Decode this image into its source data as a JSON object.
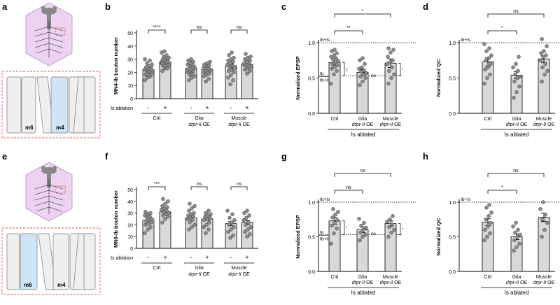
{
  "panel_labels": {
    "a": "a",
    "b": "b",
    "c": "c",
    "d": "d",
    "e": "e",
    "f": "f",
    "g": "g",
    "h": "h"
  },
  "schematic": {
    "top": {
      "left_muscle": "m6",
      "right_muscle": "m4"
    },
    "bottom": {
      "left_muscle": "m6",
      "right_muscle": "m4"
    }
  },
  "colors": {
    "bar": "#d9d9d9",
    "dot": "#8c8c8c",
    "highlight_muscle": "#cfe4f6",
    "embryo": "#e8c9ef",
    "dash_box": "#e05555"
  },
  "groups": {
    "ctrl": "Ctrl",
    "glia": "Glia",
    "muscle": "Muscle",
    "drpr": "drpr-II",
    "oe": "OE"
  },
  "ablation": {
    "label": "Is ablation",
    "minus": "-",
    "plus": "+"
  },
  "is_ablated": "Is ablated",
  "ref_labels": {
    "ibis": "Ib+Is",
    "ib": "Ib",
    "ibis2": "Ib+Is"
  },
  "chart_data": [
    {
      "id": "b",
      "type": "bar",
      "ylabel": "MN4-Ib bouton number",
      "ylim": [
        0,
        50
      ],
      "yticks": [
        0,
        10,
        20,
        30,
        40,
        50
      ],
      "categories": [
        "-",
        "+",
        "-",
        "+",
        "-",
        "+"
      ],
      "values": [
        22,
        28,
        23,
        22,
        25,
        26
      ],
      "errors": [
        1.0,
        1.0,
        1.2,
        1.2,
        1.4,
        1.2
      ],
      "points": [
        [
          14,
          16,
          17,
          18,
          18,
          19,
          19,
          20,
          20,
          21,
          21,
          22,
          22,
          22,
          23,
          23,
          24,
          24,
          25,
          26,
          27,
          29,
          30
        ],
        [
          21,
          23,
          24,
          25,
          25,
          26,
          26,
          27,
          27,
          28,
          28,
          29,
          29,
          30,
          30,
          31,
          31,
          32,
          33,
          35,
          36,
          23,
          27
        ],
        [
          14,
          16,
          17,
          18,
          19,
          20,
          21,
          21,
          22,
          22,
          23,
          23,
          24,
          24,
          25,
          26,
          26,
          27,
          28,
          29,
          30
        ],
        [
          13,
          15,
          17,
          18,
          19,
          20,
          20,
          21,
          21,
          22,
          22,
          23,
          23,
          24,
          25,
          25,
          26,
          27,
          28
        ],
        [
          11,
          14,
          16,
          18,
          20,
          21,
          22,
          23,
          24,
          25,
          26,
          27,
          28,
          29,
          30,
          31,
          33,
          35
        ],
        [
          19,
          21,
          22,
          23,
          24,
          25,
          25,
          26,
          26,
          27,
          27,
          28,
          29,
          30,
          31,
          32,
          34
        ]
      ],
      "comparisons": [
        {
          "from": 0,
          "to": 1,
          "label": "****"
        },
        {
          "from": 2,
          "to": 3,
          "label": "ns"
        },
        {
          "from": 4,
          "to": 5,
          "label": "ns"
        }
      ]
    },
    {
      "id": "c",
      "type": "bar",
      "ylabel": "Normalized EPSP",
      "ylim": [
        0,
        1.0
      ],
      "yticks": [
        "0.0",
        "0.5",
        "1.0"
      ],
      "categories": [
        "Ctrl",
        "Glia",
        "Muscle"
      ],
      "values": [
        0.72,
        0.58,
        0.71
      ],
      "errors": [
        0.04,
        0.04,
        0.06
      ],
      "ref_top": 1.0,
      "ref_low": 0.53,
      "points": [
        [
          0.42,
          0.55,
          0.6,
          0.63,
          0.66,
          0.68,
          0.7,
          0.72,
          0.74,
          0.76,
          0.78,
          0.8,
          0.82,
          0.85,
          0.88,
          0.9
        ],
        [
          0.4,
          0.45,
          0.5,
          0.52,
          0.55,
          0.57,
          0.59,
          0.61,
          0.63,
          0.65,
          0.7,
          0.75,
          0.78
        ],
        [
          0.42,
          0.5,
          0.55,
          0.6,
          0.65,
          0.7,
          0.72,
          0.75,
          0.8,
          0.86,
          0.9,
          0.92
        ]
      ],
      "comparisons": [
        {
          "from": 0,
          "to": 1,
          "label": "**"
        },
        {
          "from": 0,
          "to": 2,
          "label": "*"
        }
      ],
      "side_marks": [
        {
          "bar": 0,
          "label": "‡"
        },
        {
          "bar": 1,
          "label": "ns"
        },
        {
          "bar": 2,
          "label": "*"
        }
      ]
    },
    {
      "id": "d",
      "type": "bar",
      "ylabel": "Normalized QC",
      "ylim": [
        0,
        1.0
      ],
      "yticks": [
        "0.0",
        "0.5",
        "1.0"
      ],
      "categories": [
        "Ctrl",
        "Glia",
        "Muscle"
      ],
      "values": [
        0.73,
        0.54,
        0.77
      ],
      "errors": [
        0.06,
        0.05,
        0.05
      ],
      "ref_top": 1.0,
      "points": [
        [
          0.42,
          0.5,
          0.55,
          0.62,
          0.65,
          0.7,
          0.75,
          0.78,
          0.82,
          0.88,
          0.92,
          0.98
        ],
        [
          0.22,
          0.3,
          0.38,
          0.45,
          0.5,
          0.52,
          0.55,
          0.6,
          0.65,
          0.7,
          0.8
        ],
        [
          0.45,
          0.55,
          0.6,
          0.65,
          0.7,
          0.75,
          0.8,
          0.82,
          0.85,
          0.88,
          0.95,
          1.05
        ]
      ],
      "comparisons": [
        {
          "from": 0,
          "to": 1,
          "label": "*"
        },
        {
          "from": 0,
          "to": 2,
          "label": "ns"
        }
      ]
    },
    {
      "id": "f",
      "type": "bar",
      "ylabel": "MN6-Ib bouton number",
      "ylim": [
        0,
        50
      ],
      "yticks": [
        0,
        10,
        20,
        30,
        40,
        50
      ],
      "categories": [
        "-",
        "+",
        "-",
        "+",
        "-",
        "+"
      ],
      "values": [
        24,
        31,
        26,
        25,
        21,
        22
      ],
      "errors": [
        1.3,
        1.1,
        1.3,
        1.1,
        1.8,
        1.6
      ],
      "points": [
        [
          13,
          16,
          18,
          20,
          21,
          22,
          23,
          24,
          25,
          26,
          27,
          28,
          29,
          30,
          31
        ],
        [
          22,
          25,
          27,
          28,
          29,
          30,
          31,
          32,
          33,
          34,
          35,
          36,
          38,
          40,
          42
        ],
        [
          16,
          18,
          20,
          22,
          24,
          25,
          26,
          27,
          28,
          29,
          30,
          32,
          34,
          36,
          38
        ],
        [
          13,
          16,
          18,
          20,
          22,
          24,
          25,
          26,
          27,
          28,
          29,
          30,
          32
        ],
        [
          9,
          11,
          14,
          16,
          18,
          20,
          22,
          24,
          26,
          29,
          32
        ],
        [
          10,
          12,
          14,
          16,
          18,
          20,
          22,
          24,
          26,
          28,
          30,
          32
        ]
      ],
      "comparisons": [
        {
          "from": 0,
          "to": 1,
          "label": "***"
        },
        {
          "from": 2,
          "to": 3,
          "label": "ns"
        },
        {
          "from": 4,
          "to": 5,
          "label": "ns"
        }
      ]
    },
    {
      "id": "g",
      "type": "bar",
      "ylabel": "Normalized EPSP",
      "ylim": [
        0,
        1.0
      ],
      "yticks": [
        "0.0",
        "0.5",
        "1.0"
      ],
      "categories": [
        "Ctrl",
        "Glia",
        "Muscle"
      ],
      "values": [
        0.73,
        0.6,
        0.69
      ],
      "errors": [
        0.05,
        0.04,
        0.04
      ],
      "ref_top": 1.0,
      "ref_low": 0.53,
      "points": [
        [
          0.4,
          0.55,
          0.62,
          0.66,
          0.7,
          0.74,
          0.78,
          0.82,
          0.86,
          0.9
        ],
        [
          0.45,
          0.5,
          0.53,
          0.56,
          0.6,
          0.63,
          0.66,
          0.7,
          0.76
        ],
        [
          0.5,
          0.56,
          0.6,
          0.64,
          0.68,
          0.72,
          0.75,
          0.8
        ]
      ],
      "comparisons": [
        {
          "from": 0,
          "to": 1,
          "label": "ns"
        },
        {
          "from": 0,
          "to": 2,
          "label": "ns"
        }
      ],
      "side_marks": [
        {
          "bar": 0,
          "label": "*"
        },
        {
          "bar": 1,
          "label": "ns"
        },
        {
          "bar": 2,
          "label": "*"
        }
      ]
    },
    {
      "id": "h",
      "type": "bar",
      "ylabel": "Normalized QC",
      "ylim": [
        0,
        1.0
      ],
      "yticks": [
        "0.0",
        "0.5",
        "1.0"
      ],
      "categories": [
        "Ctrl",
        "Glia",
        "Muscle"
      ],
      "values": [
        0.71,
        0.5,
        0.78
      ],
      "errors": [
        0.05,
        0.04,
        0.06
      ],
      "ref_top": 1.0,
      "points": [
        [
          0.45,
          0.5,
          0.55,
          0.6,
          0.65,
          0.7,
          0.75,
          0.8,
          0.85,
          0.92,
          0.96
        ],
        [
          0.3,
          0.35,
          0.4,
          0.45,
          0.5,
          0.53,
          0.56,
          0.6,
          0.65,
          0.7
        ],
        [
          0.5,
          0.6,
          0.7,
          0.75,
          0.82,
          0.9,
          1.0
        ]
      ],
      "comparisons": [
        {
          "from": 0,
          "to": 1,
          "label": "*"
        },
        {
          "from": 0,
          "to": 2,
          "label": "ns"
        }
      ]
    }
  ]
}
